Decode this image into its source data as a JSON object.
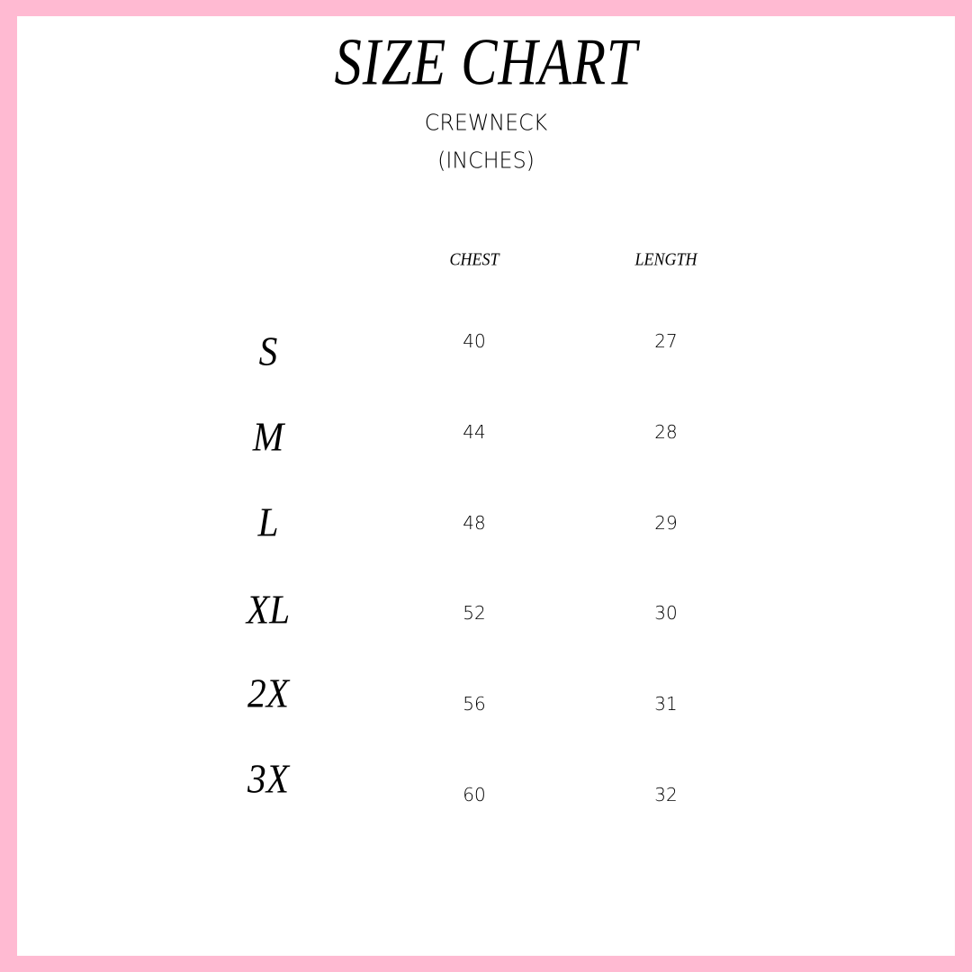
{
  "colors": {
    "border": "#FFBAD2",
    "background": "#FFFFFF",
    "text": "#000000"
  },
  "title": "SIZE CHART",
  "subtitle": "CREWNECK",
  "unit": "(INCHES)",
  "headers": [
    "CHEST",
    "LENGTH"
  ],
  "rows": [
    {
      "size": "S",
      "chest": "40",
      "length": "27"
    },
    {
      "size": "M",
      "chest": "44",
      "length": "28"
    },
    {
      "size": "L",
      "chest": "48",
      "length": "29"
    },
    {
      "size": "XL",
      "chest": "52",
      "length": "30"
    },
    {
      "size": "2X",
      "chest": "56",
      "length": "31"
    },
    {
      "size": "3X",
      "chest": "60",
      "length": "32"
    }
  ]
}
